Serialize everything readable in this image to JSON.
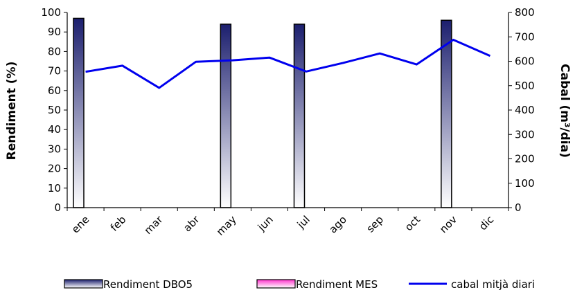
{
  "chart_data": {
    "type": "bar",
    "categories": [
      "ene",
      "feb",
      "mar",
      "abr",
      "may",
      "jun",
      "jul",
      "ago",
      "sep",
      "oct",
      "nov",
      "dic"
    ],
    "series": [
      {
        "name": "Rendiment DBO5",
        "type": "bar",
        "axis": "left",
        "values": [
          97,
          null,
          null,
          null,
          94,
          null,
          94,
          null,
          null,
          null,
          96,
          null
        ]
      },
      {
        "name": "Rendiment MES",
        "type": "bar",
        "axis": "left",
        "values": [
          null,
          null,
          null,
          null,
          null,
          null,
          null,
          null,
          null,
          null,
          null,
          null
        ]
      },
      {
        "name": "cabal mitjà diari",
        "type": "line",
        "axis": "right",
        "values": [
          557,
          582,
          491,
          598,
          604,
          615,
          558,
          593,
          632,
          587,
          688,
          622
        ]
      }
    ],
    "ylabel": "Rendiment (%)",
    "y2label": "Cabal (m³/dia)",
    "ylim": [
      0,
      100
    ],
    "y2lim": [
      0,
      800
    ],
    "yticks": [
      0,
      10,
      20,
      30,
      40,
      50,
      60,
      70,
      80,
      90,
      100
    ],
    "y2ticks": [
      0,
      100,
      200,
      300,
      400,
      500,
      600,
      700,
      800
    ],
    "grid": false,
    "legend_position": "bottom",
    "colors": {
      "dbo5_dark": "#1c1f6e",
      "dbo5_light": "#ffffff",
      "mes_pink": "#ff33cc",
      "line": "#0000ee",
      "axis": "#000000"
    }
  }
}
